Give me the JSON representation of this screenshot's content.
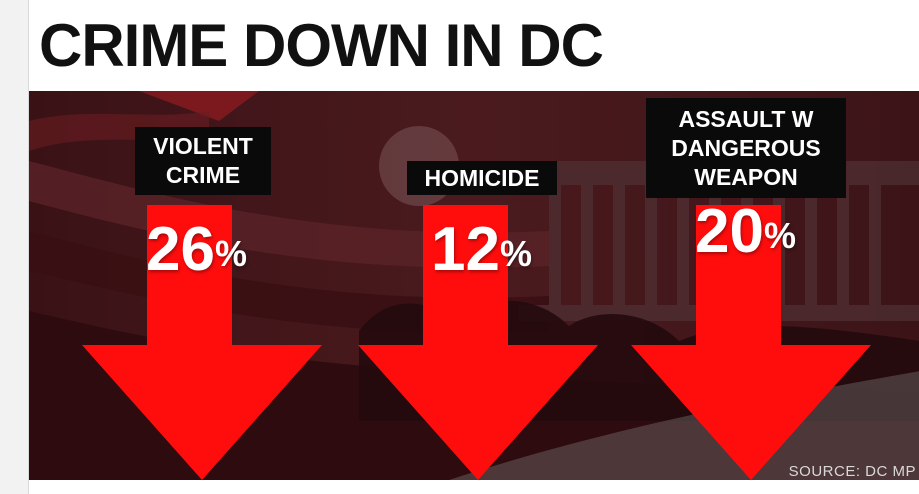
{
  "headline": "CRIME DOWN IN DC",
  "source": "SOURCE: DC MP",
  "colors": {
    "arrow": "#ff0d0d",
    "label_bg": "#0a0a0a",
    "background": "#2a0d10"
  },
  "chart_data": {
    "type": "bar",
    "categories": [
      "VIOLENT\nCRIME",
      "HOMICIDE",
      "ASSAULT W\nDANGEROUS\nWEAPON"
    ],
    "values": [
      26,
      12,
      20
    ],
    "value_labels": [
      "26",
      "12",
      "20"
    ],
    "unit": "%",
    "title": "CRIME DOWN IN DC",
    "direction": "down"
  }
}
